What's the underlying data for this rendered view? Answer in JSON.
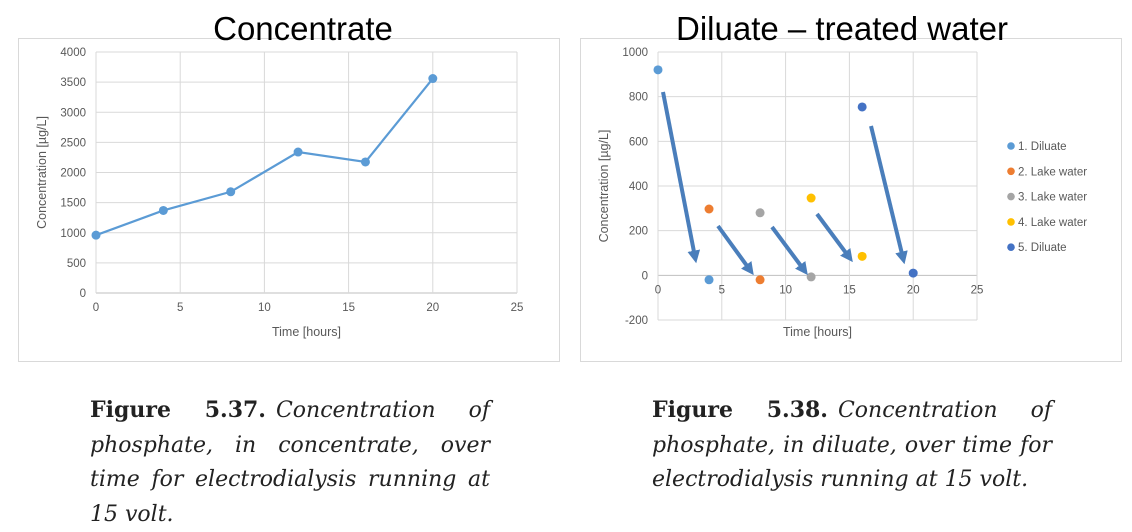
{
  "chart_data": [
    {
      "type": "line",
      "title": "Concentrate",
      "xlabel": "Time [hours]",
      "ylabel": "Concentration [µg/L]",
      "xlim": [
        0,
        25
      ],
      "ylim": [
        0,
        4000
      ],
      "xticks": [
        "0",
        "5",
        "10",
        "15",
        "20",
        "25"
      ],
      "yticks": [
        "0",
        "500",
        "1000",
        "1500",
        "2000",
        "2500",
        "3000",
        "3500",
        "4000"
      ],
      "grid": true,
      "series": [
        {
          "name": "Concentrate",
          "color": "#5B9BD5",
          "x": [
            0,
            4,
            8,
            12,
            16,
            20
          ],
          "y": [
            960,
            1370,
            1680,
            2340,
            2175,
            3560
          ]
        }
      ],
      "caption": {
        "label": "Figure 5.37.",
        "text": "Concentration of phosphate, in concentrate, over time for electrodialysis running at 15 volt."
      }
    },
    {
      "type": "scatter",
      "title": "Diluate – treated water",
      "xlabel": "Time [hours]",
      "ylabel": "Concentration [µg/L]",
      "xlim": [
        0,
        25
      ],
      "ylim": [
        -200,
        1000
      ],
      "xticks": [
        "0",
        "5",
        "10",
        "15",
        "20",
        "25"
      ],
      "yticks": [
        "-200",
        "0",
        "200",
        "400",
        "600",
        "800",
        "1000"
      ],
      "grid": true,
      "legend": "right",
      "series": [
        {
          "name": "1. Diluate",
          "color": "#5B9BD5",
          "x": [
            0,
            4
          ],
          "y": [
            920,
            -20
          ]
        },
        {
          "name": "2. Lake water",
          "color": "#ED7D31",
          "x": [
            4,
            8
          ],
          "y": [
            297,
            -20
          ]
        },
        {
          "name": "3. Lake water",
          "color": "#A5A5A5",
          "x": [
            8,
            12
          ],
          "y": [
            280,
            -7
          ]
        },
        {
          "name": "4. Lake water",
          "color": "#FFC000",
          "x": [
            12,
            16
          ],
          "y": [
            346,
            85
          ]
        },
        {
          "name": "5. Diluate",
          "color": "#4472C4",
          "x": [
            16,
            20
          ],
          "y": [
            754,
            10
          ]
        }
      ],
      "annotation_color": "#4A7EBB",
      "caption": {
        "label": "Figure 5.38.",
        "text": "Concentration of phosphate, in diluate, over time for electrodialysis running at 15 volt."
      }
    }
  ]
}
